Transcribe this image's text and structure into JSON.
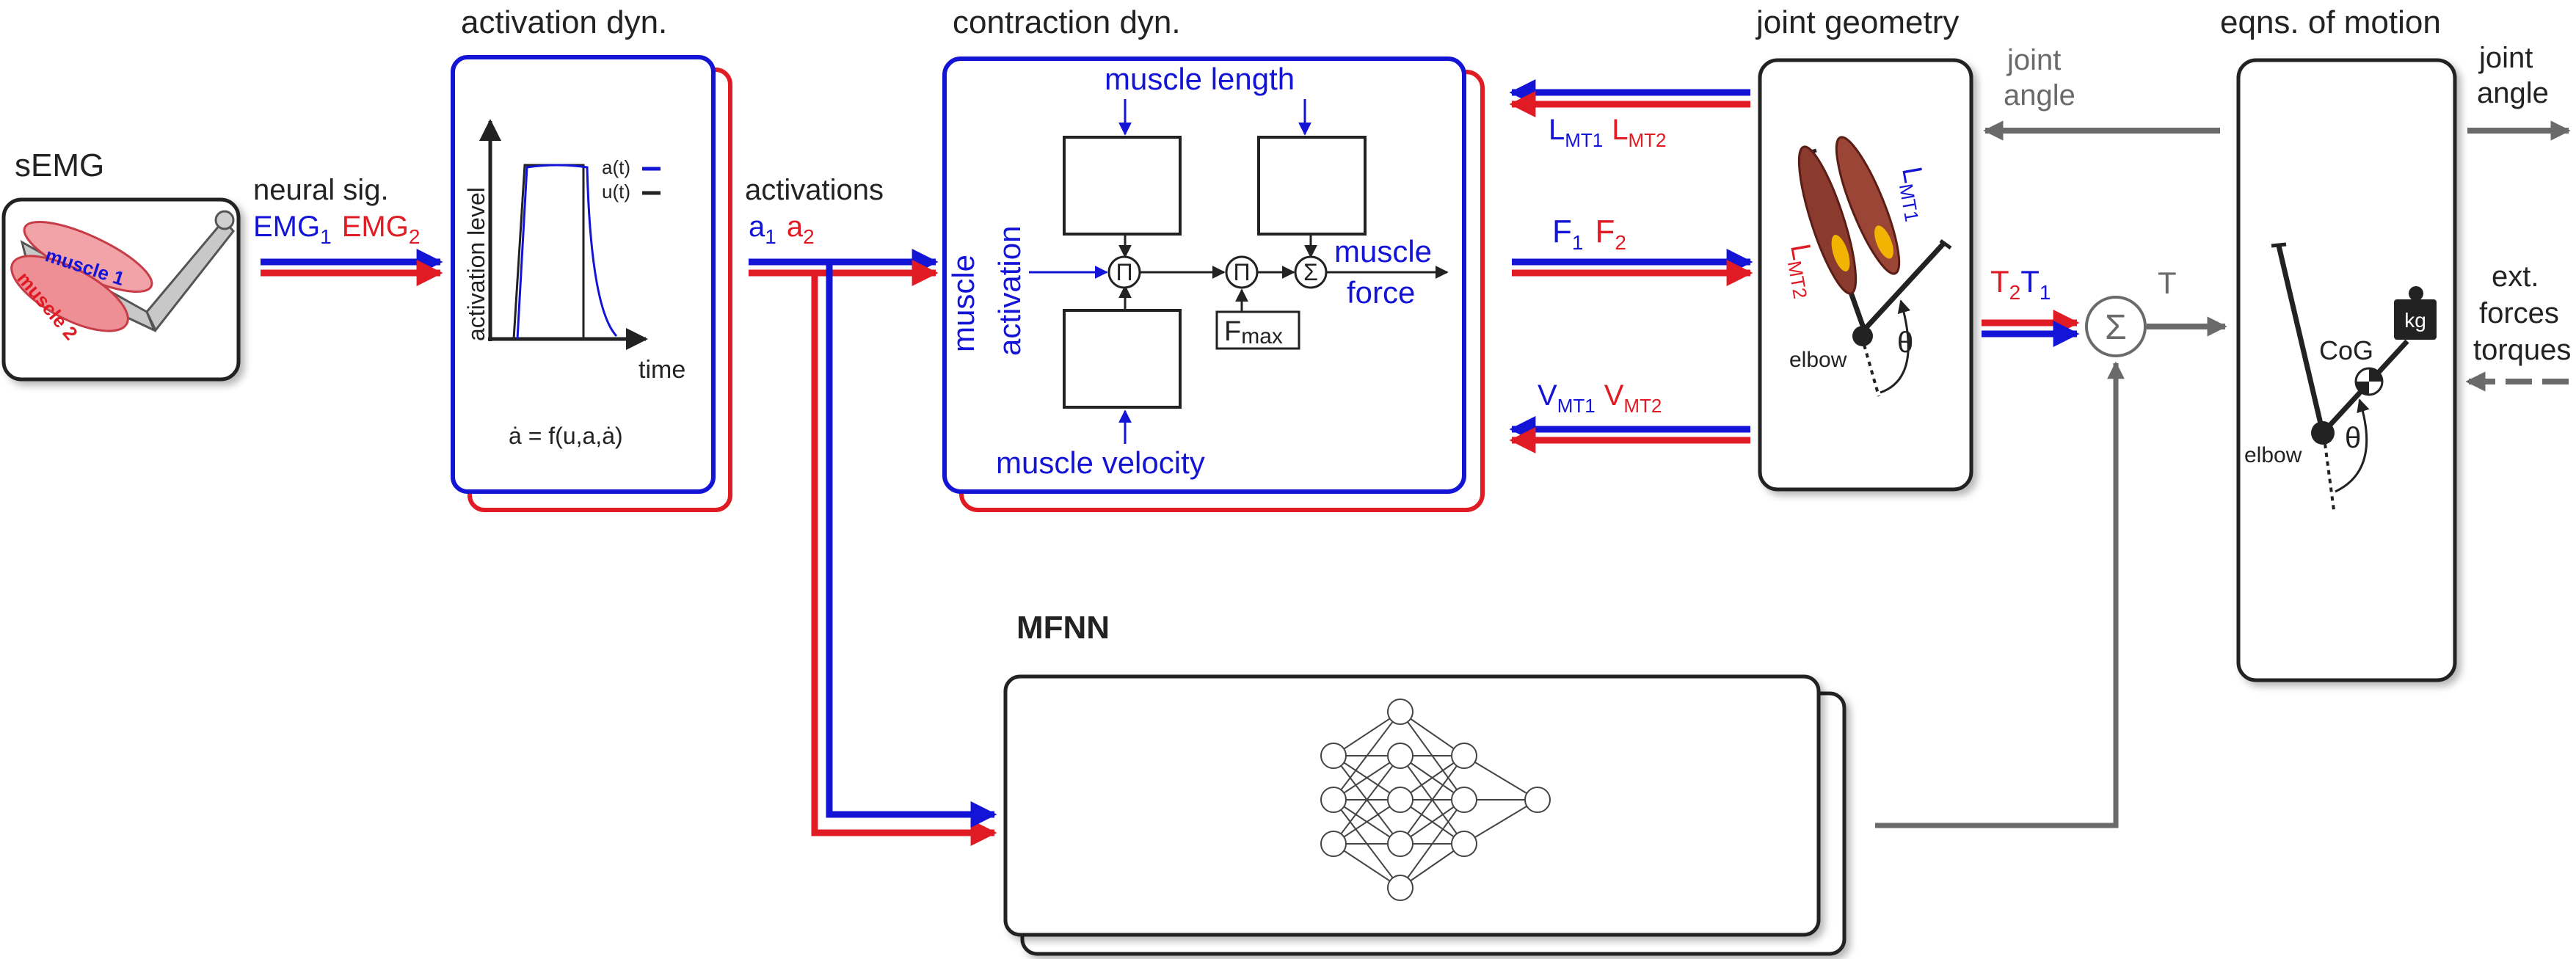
{
  "colors": {
    "blue": "#1414d6",
    "red": "#e01b24",
    "gray": "#6a6a6a",
    "dark": "#222222",
    "muscle": "#8b3a2e",
    "muscle_accent": "#f2b400"
  },
  "labels": {
    "semg": "sEMG",
    "neural_sig": "neural sig.",
    "emg1_main": "EMG",
    "emg1_sub": "1",
    "emg2_main": "EMG",
    "emg2_sub": "2",
    "muscle1": "muscle 1",
    "muscle2": "muscle 2",
    "activation_dyn": "activation dyn.",
    "activation_level": "activation level",
    "a_t": "a(t)",
    "u_t": "u(t)",
    "time": "time",
    "activation_eq": "ȧ = f(u,a,ȧ)",
    "activations": "activations",
    "a1_main": "a",
    "a1_sub": "1",
    "a2_main": "a",
    "a2_sub": "2",
    "contraction_dyn": "contraction dyn.",
    "muscle_length": "muscle length",
    "muscle_activation_1": "muscle",
    "muscle_activation_2": "activation",
    "pi": "Π",
    "sigma": "Σ",
    "fmax_main": "F",
    "fmax_sub": "max",
    "muscle_force_1": "muscle",
    "muscle_force_2": "force",
    "muscle_velocity": "muscle velocity",
    "lmt1_main": "L",
    "lmt1_sub": "MT1",
    "lmt2_main": "L",
    "lmt2_sub": "MT2",
    "f1_main": "F",
    "f1_sub": "1",
    "f2_main": "F",
    "f2_sub": "2",
    "vmt1_main": "V",
    "vmt1_sub": "MT1",
    "vmt2_main": "V",
    "vmt2_sub": "MT2",
    "joint_geometry": "joint geometry",
    "elbow": "elbow",
    "theta": "θ",
    "joint_angle_1a": "joint",
    "joint_angle_1b": "angle",
    "eqns_of_motion": "eqns. of motion",
    "joint_angle_2a": "joint",
    "joint_angle_2b": "angle",
    "t2_main": "T",
    "t2_sub": "2",
    "t1_main": "T",
    "t1_sub": "1",
    "t_total": "T",
    "cog": "CoG",
    "kg": "kg",
    "ext_forces_1": "ext.",
    "ext_forces_2": "forces",
    "ext_forces_3": "torques",
    "mfnn": "MFNN"
  },
  "nodes": {
    "semg": {
      "label": "sEMG"
    },
    "activation_dynamics": {
      "label": "activation dyn."
    },
    "contraction_dynamics": {
      "label": "contraction dyn."
    },
    "joint_geometry": {
      "label": "joint geometry"
    },
    "equations_of_motion": {
      "label": "eqns. of motion"
    },
    "mfnn": {
      "label": "MFNN"
    },
    "torque_sum": {
      "label": "Σ"
    }
  },
  "edges": [
    {
      "from": "semg",
      "to": "activation_dynamics",
      "label": "neural sig."
    },
    {
      "from": "activation_dynamics",
      "to": "contraction_dynamics",
      "label": "activations"
    },
    {
      "from": "activation_dynamics",
      "to": "mfnn",
      "label": ""
    },
    {
      "from": "joint_geometry",
      "to": "contraction_dynamics",
      "label": "L_MT1 L_MT2"
    },
    {
      "from": "contraction_dynamics",
      "to": "joint_geometry",
      "label": "F_1 F_2"
    },
    {
      "from": "joint_geometry",
      "to": "contraction_dynamics",
      "label": "V_MT1 V_MT2"
    },
    {
      "from": "joint_geometry",
      "to": "torque_sum",
      "label": "T_2 T_1"
    },
    {
      "from": "mfnn",
      "to": "torque_sum",
      "label": ""
    },
    {
      "from": "torque_sum",
      "to": "equations_of_motion",
      "label": "T"
    },
    {
      "from": "equations_of_motion",
      "to": "joint_geometry",
      "label": "joint angle"
    },
    {
      "from": "equations_of_motion",
      "to": "output",
      "label": "joint angle"
    },
    {
      "from": "external",
      "to": "equations_of_motion",
      "label": "ext. forces torques"
    }
  ]
}
